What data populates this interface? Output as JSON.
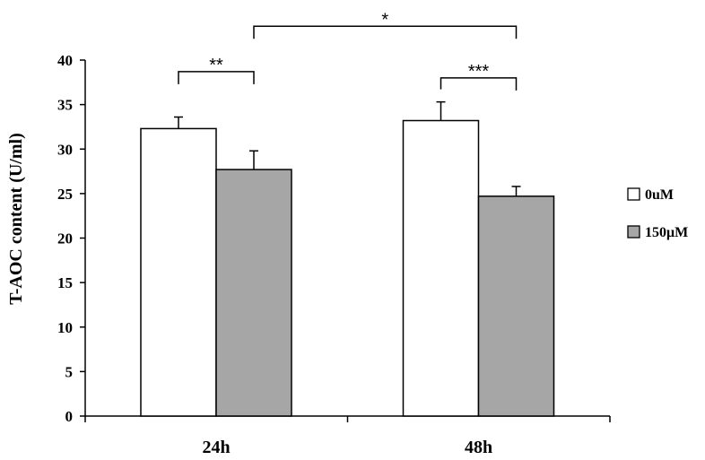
{
  "chart_data": {
    "type": "bar",
    "title": "",
    "xlabel": "",
    "ylabel": "T-AOC content (U/ml)",
    "ylim": [
      0,
      40
    ],
    "yticks": [
      0,
      5,
      10,
      15,
      20,
      25,
      30,
      35,
      40
    ],
    "categories": [
      "24h",
      "48h"
    ],
    "series": [
      {
        "name": "0uM",
        "values": [
          32.3,
          33.2
        ],
        "errors": [
          1.3,
          2.1
        ],
        "color": "#ffffff"
      },
      {
        "name": "150μM",
        "values": [
          27.7,
          24.7
        ],
        "errors": [
          2.1,
          1.1
        ],
        "color": "#a6a6a6"
      }
    ],
    "legend_position": "right",
    "grid": false,
    "significance": [
      {
        "label": "**",
        "from": {
          "category": 0,
          "series": 0
        },
        "to": {
          "category": 0,
          "series": 1
        },
        "level": 38.7
      },
      {
        "label": "***",
        "from": {
          "category": 1,
          "series": 0
        },
        "to": {
          "category": 1,
          "series": 1
        },
        "level": 38.0
      },
      {
        "label": "*",
        "from": {
          "category": 0,
          "series": 1
        },
        "to": {
          "category": 1,
          "series": 1
        },
        "level": 43.8
      }
    ]
  }
}
